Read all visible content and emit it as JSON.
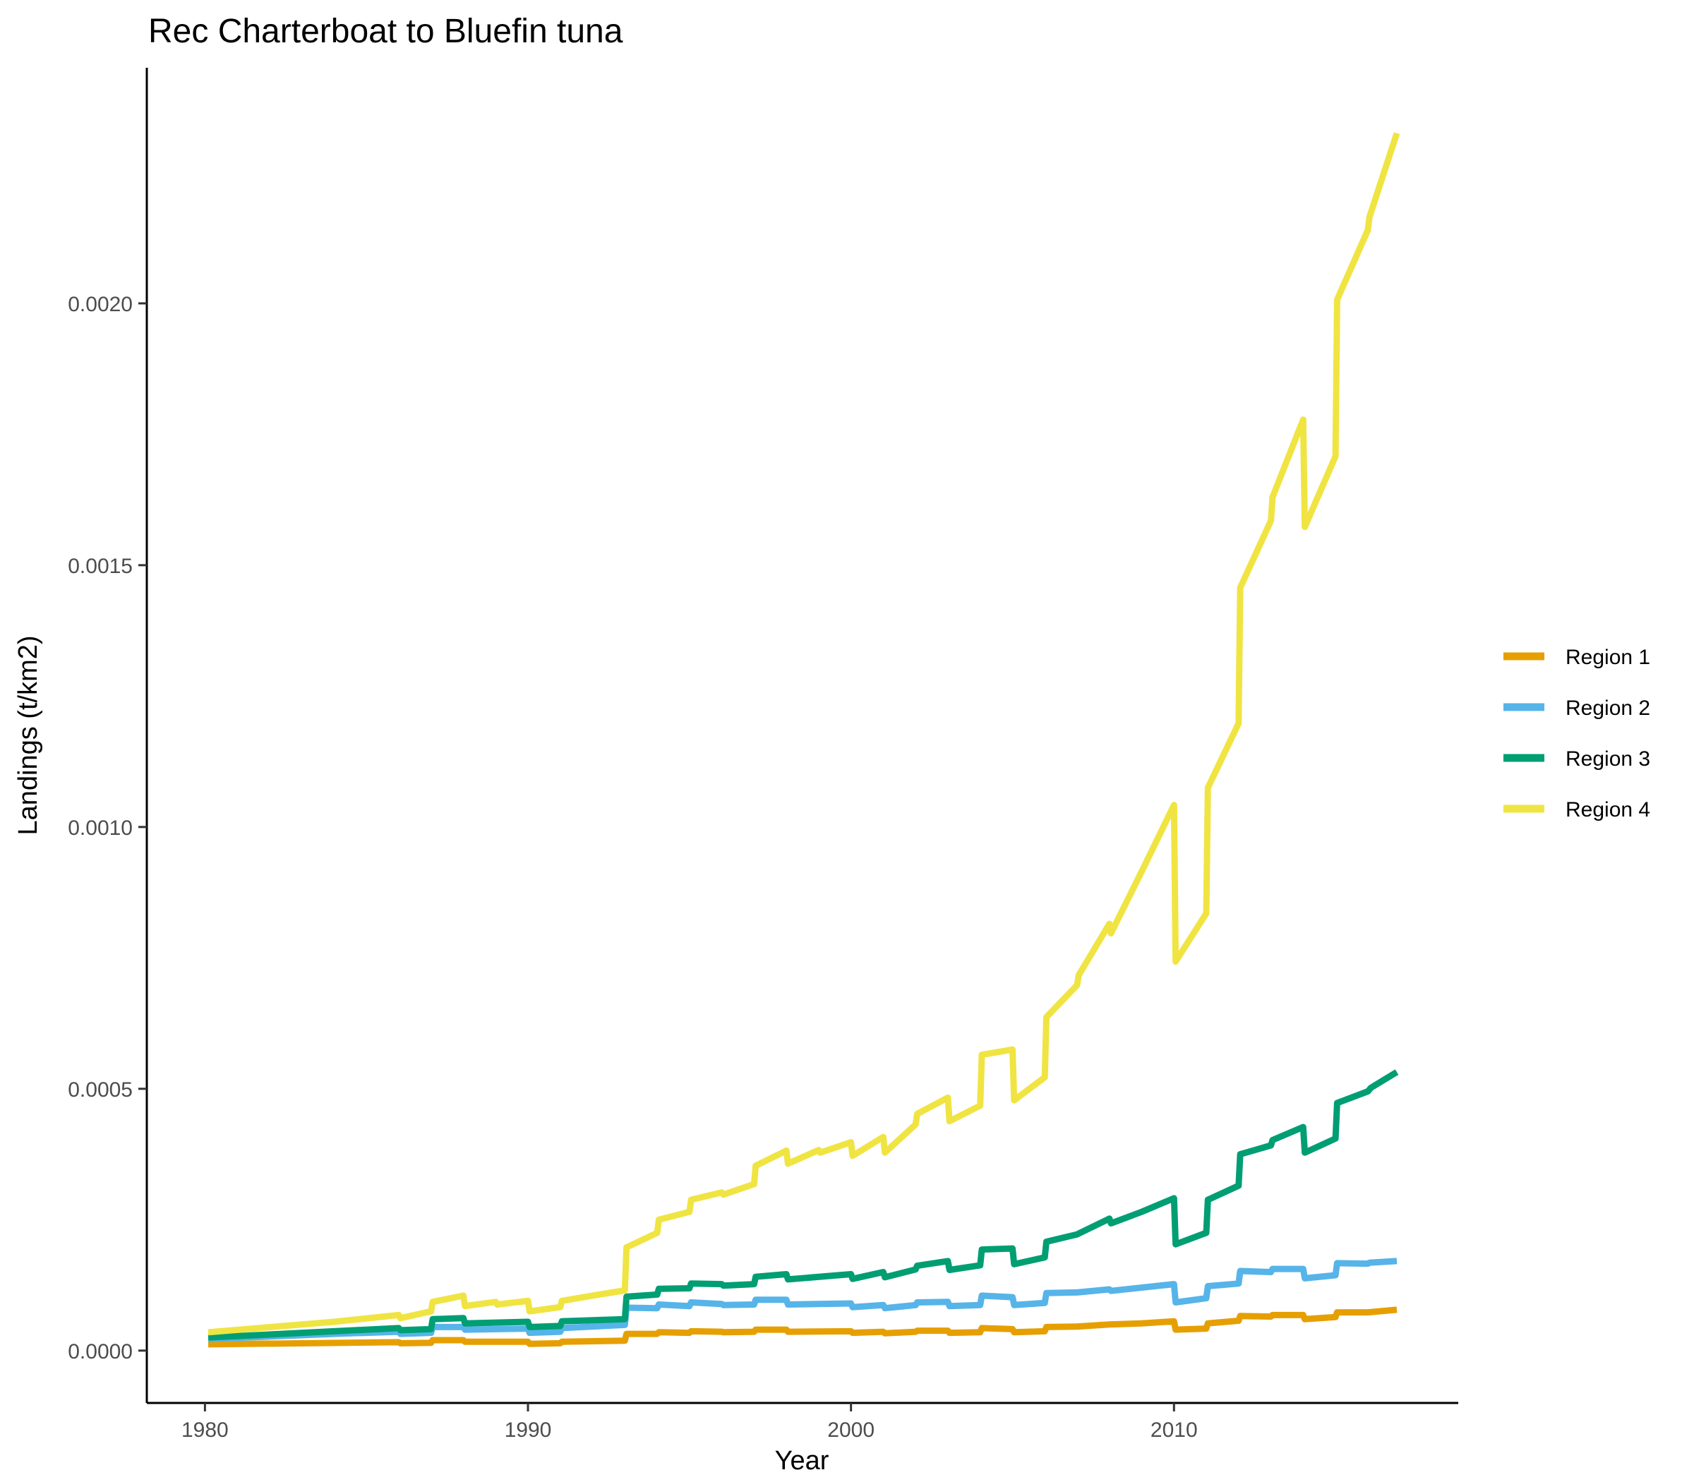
{
  "chart_data": {
    "type": "line",
    "title": "Rec Charterboat to Bluefin tuna",
    "xlabel": "Year",
    "ylabel": "Landings (t/km2)",
    "xlim": [
      1978.2,
      2018.8
    ],
    "ylim": [
      -0.0001,
      0.00245
    ],
    "x_ticks": [
      1980,
      1990,
      2000,
      2010
    ],
    "x_tick_labels": [
      "1980",
      "1990",
      "2000",
      "2010"
    ],
    "y_ticks": [
      0,
      0.0005,
      0.001,
      0.0015,
      0.002
    ],
    "y_tick_labels": [
      "0.0000",
      "0.0005",
      "0.0010",
      "0.0015",
      "0.0020"
    ],
    "grid": false,
    "legend_position": "right",
    "series": [
      {
        "name": "Region 1",
        "color": "#E69F00",
        "points": [
          [
            1980.1,
            1.2e-05
          ],
          [
            1986,
            1.6e-05
          ],
          [
            1986.05,
            1.4e-05
          ],
          [
            1987,
            1.5e-05
          ],
          [
            1987.05,
            2e-05
          ],
          [
            1988,
            2e-05
          ],
          [
            1988.05,
            1.7e-05
          ],
          [
            1990,
            1.7e-05
          ],
          [
            1990.05,
            1.3e-05
          ],
          [
            1991,
            1.4e-05
          ],
          [
            1991.05,
            1.7e-05
          ],
          [
            1993,
            1.9e-05
          ],
          [
            1993.05,
            3.2e-05
          ],
          [
            1994,
            3.2e-05
          ],
          [
            1994.05,
            3.5e-05
          ],
          [
            1995,
            3.4e-05
          ],
          [
            1995.05,
            3.7e-05
          ],
          [
            1996,
            3.6e-05
          ],
          [
            1996.05,
            3.5e-05
          ],
          [
            1997,
            3.6e-05
          ],
          [
            1997.05,
            4e-05
          ],
          [
            1998,
            4e-05
          ],
          [
            1998.05,
            3.6e-05
          ],
          [
            2000,
            3.7e-05
          ],
          [
            2000.05,
            3.4e-05
          ],
          [
            2001,
            3.6e-05
          ],
          [
            2001.05,
            3.3e-05
          ],
          [
            2002,
            3.6e-05
          ],
          [
            2002.05,
            3.8e-05
          ],
          [
            2003,
            3.8e-05
          ],
          [
            2003.05,
            3.4e-05
          ],
          [
            2004,
            3.5e-05
          ],
          [
            2004.05,
            4.3e-05
          ],
          [
            2005,
            4.1e-05
          ],
          [
            2005.05,
            3.5e-05
          ],
          [
            2006,
            3.7e-05
          ],
          [
            2006.05,
            4.5e-05
          ],
          [
            2007,
            4.6e-05
          ],
          [
            2008,
            5e-05
          ],
          [
            2009,
            5.2e-05
          ],
          [
            2010,
            5.6e-05
          ],
          [
            2010.05,
            4e-05
          ],
          [
            2011,
            4.2e-05
          ],
          [
            2011.05,
            5.2e-05
          ],
          [
            2012,
            5.7e-05
          ],
          [
            2012.05,
            6.6e-05
          ],
          [
            2013,
            6.5e-05
          ],
          [
            2013.05,
            6.8e-05
          ],
          [
            2014,
            6.8e-05
          ],
          [
            2014.05,
            6e-05
          ],
          [
            2015,
            6.4e-05
          ],
          [
            2015.05,
            7.3e-05
          ],
          [
            2016,
            7.3e-05
          ],
          [
            2016.9,
            7.8e-05
          ]
        ]
      },
      {
        "name": "Region 2",
        "color": "#56B4E9",
        "points": [
          [
            1980.1,
            2.2e-05
          ],
          [
            1984,
            3.2e-05
          ],
          [
            1986,
            3.6e-05
          ],
          [
            1986.05,
            3.2e-05
          ],
          [
            1987,
            3.4e-05
          ],
          [
            1987.05,
            4.5e-05
          ],
          [
            1988,
            4.5e-05
          ],
          [
            1988.05,
            4e-05
          ],
          [
            1990,
            4.2e-05
          ],
          [
            1990.05,
            3.4e-05
          ],
          [
            1991,
            3.6e-05
          ],
          [
            1991.05,
            4.3e-05
          ],
          [
            1993,
            4.9e-05
          ],
          [
            1993.05,
            8.2e-05
          ],
          [
            1994,
            8.1e-05
          ],
          [
            1994.05,
            8.8e-05
          ],
          [
            1995,
            8.5e-05
          ],
          [
            1995.05,
            9.2e-05
          ],
          [
            1996,
            8.9e-05
          ],
          [
            1996.05,
            8.7e-05
          ],
          [
            1997,
            8.8e-05
          ],
          [
            1997.05,
            9.7e-05
          ],
          [
            1998,
            9.7e-05
          ],
          [
            1998.05,
            8.8e-05
          ],
          [
            2000,
            9e-05
          ],
          [
            2000.05,
            8.3e-05
          ],
          [
            2001,
            8.7e-05
          ],
          [
            2001.05,
            8.1e-05
          ],
          [
            2002,
            8.7e-05
          ],
          [
            2002.05,
            9.2e-05
          ],
          [
            2003,
            9.3e-05
          ],
          [
            2003.05,
            8.5e-05
          ],
          [
            2004,
            8.7e-05
          ],
          [
            2004.05,
            0.000105
          ],
          [
            2005,
            0.000102
          ],
          [
            2005.05,
            8.7e-05
          ],
          [
            2006,
            9.1e-05
          ],
          [
            2006.05,
            0.00011
          ],
          [
            2007,
            0.000111
          ],
          [
            2008,
            0.000117
          ],
          [
            2008.05,
            0.000114
          ],
          [
            2010,
            0.000127
          ],
          [
            2010.05,
            9.2e-05
          ],
          [
            2011,
            0.0001
          ],
          [
            2011.05,
            0.000123
          ],
          [
            2012,
            0.000128
          ],
          [
            2012.05,
            0.000152
          ],
          [
            2013,
            0.00015
          ],
          [
            2013.05,
            0.000156
          ],
          [
            2014,
            0.000156
          ],
          [
            2014.05,
            0.000138
          ],
          [
            2015,
            0.000144
          ],
          [
            2015.05,
            0.000167
          ],
          [
            2016,
            0.000166
          ],
          [
            2016.05,
            0.000168
          ],
          [
            2016.9,
            0.000171
          ]
        ]
      },
      {
        "name": "Region 3",
        "color": "#009E73",
        "points": [
          [
            1980.1,
            2.5e-05
          ],
          [
            1984,
            3.7e-05
          ],
          [
            1986,
            4.3e-05
          ],
          [
            1986.05,
            3.9e-05
          ],
          [
            1987,
            4.1e-05
          ],
          [
            1987.05,
            6e-05
          ],
          [
            1988,
            6.2e-05
          ],
          [
            1988.05,
            5.2e-05
          ],
          [
            1990,
            5.5e-05
          ],
          [
            1990.05,
            4.5e-05
          ],
          [
            1991,
            4.7e-05
          ],
          [
            1991.05,
            5.6e-05
          ],
          [
            1993,
            6e-05
          ],
          [
            1993.05,
            0.000103
          ],
          [
            1994,
            0.000107
          ],
          [
            1994.05,
            0.000118
          ],
          [
            1995,
            0.000119
          ],
          [
            1995.05,
            0.000128
          ],
          [
            1996,
            0.000127
          ],
          [
            1996.05,
            0.000124
          ],
          [
            1997,
            0.000127
          ],
          [
            1997.05,
            0.000141
          ],
          [
            1998,
            0.000146
          ],
          [
            1998.05,
            0.000136
          ],
          [
            2000,
            0.000146
          ],
          [
            2000.05,
            0.000137
          ],
          [
            2001,
            0.00015
          ],
          [
            2001.05,
            0.00014
          ],
          [
            2002,
            0.000155
          ],
          [
            2002.05,
            0.000162
          ],
          [
            2003,
            0.000171
          ],
          [
            2003.05,
            0.000154
          ],
          [
            2004,
            0.000163
          ],
          [
            2004.05,
            0.000193
          ],
          [
            2005,
            0.000195
          ],
          [
            2005.05,
            0.000165
          ],
          [
            2006,
            0.000178
          ],
          [
            2006.05,
            0.000208
          ],
          [
            2007,
            0.000222
          ],
          [
            2008,
            0.000252
          ],
          [
            2008.05,
            0.000243
          ],
          [
            2009,
            0.000265
          ],
          [
            2010,
            0.000291
          ],
          [
            2010.05,
            0.000203
          ],
          [
            2011,
            0.000225
          ],
          [
            2011.05,
            0.000288
          ],
          [
            2012,
            0.000315
          ],
          [
            2012.05,
            0.000375
          ],
          [
            2013,
            0.000392
          ],
          [
            2013.05,
            0.000402
          ],
          [
            2014,
            0.000427
          ],
          [
            2014.05,
            0.000378
          ],
          [
            2015,
            0.000405
          ],
          [
            2015.05,
            0.000473
          ],
          [
            2016,
            0.000495
          ],
          [
            2016.1,
            0.000502
          ],
          [
            2016.9,
            0.000532
          ]
        ]
      },
      {
        "name": "Region 4",
        "color": "#F0E442",
        "points": [
          [
            1980.1,
            3.5e-05
          ],
          [
            1984,
            5.5e-05
          ],
          [
            1986,
            6.8e-05
          ],
          [
            1986.05,
            6.2e-05
          ],
          [
            1987,
            7.5e-05
          ],
          [
            1987.05,
            9.3e-05
          ],
          [
            1988,
            0.000105
          ],
          [
            1988.05,
            8.5e-05
          ],
          [
            1989,
            9.3e-05
          ],
          [
            1989.05,
            8.8e-05
          ],
          [
            1990,
            9.5e-05
          ],
          [
            1990.05,
            7.5e-05
          ],
          [
            1991,
            8.3e-05
          ],
          [
            1991.05,
            9.5e-05
          ],
          [
            1992,
            0.000105
          ],
          [
            1993,
            0.000115
          ],
          [
            1993.05,
            0.000197
          ],
          [
            1994,
            0.000225
          ],
          [
            1994.05,
            0.00025
          ],
          [
            1995,
            0.000265
          ],
          [
            1995.05,
            0.000288
          ],
          [
            1996,
            0.000302
          ],
          [
            1996.05,
            0.000298
          ],
          [
            1997,
            0.000318
          ],
          [
            1997.05,
            0.000353
          ],
          [
            1998,
            0.000382
          ],
          [
            1998.05,
            0.000357
          ],
          [
            1999,
            0.000383
          ],
          [
            1999.05,
            0.000378
          ],
          [
            2000,
            0.000398
          ],
          [
            2000.05,
            0.000372
          ],
          [
            2001,
            0.000408
          ],
          [
            2001.05,
            0.000378
          ],
          [
            2002,
            0.000432
          ],
          [
            2002.05,
            0.000452
          ],
          [
            2003,
            0.000483
          ],
          [
            2003.05,
            0.000438
          ],
          [
            2004,
            0.000468
          ],
          [
            2004.05,
            0.000565
          ],
          [
            2005,
            0.000575
          ],
          [
            2005.05,
            0.000478
          ],
          [
            2006,
            0.000522
          ],
          [
            2006.05,
            0.000637
          ],
          [
            2007,
            0.000698
          ],
          [
            2007.05,
            0.000717
          ],
          [
            2008,
            0.000815
          ],
          [
            2008.05,
            0.000797
          ],
          [
            2009,
            0.000915
          ],
          [
            2010,
            0.001042
          ],
          [
            2010.05,
            0.000743
          ],
          [
            2011,
            0.000835
          ],
          [
            2011.05,
            0.001075
          ],
          [
            2012,
            0.001198
          ],
          [
            2012.05,
            0.001457
          ],
          [
            2013,
            0.001585
          ],
          [
            2013.05,
            0.00163
          ],
          [
            2014,
            0.001778
          ],
          [
            2014.05,
            0.001573
          ],
          [
            2015,
            0.001708
          ],
          [
            2015.05,
            0.002007
          ],
          [
            2016,
            0.00214
          ],
          [
            2016.05,
            0.002165
          ],
          [
            2016.9,
            0.002325
          ]
        ]
      }
    ]
  }
}
